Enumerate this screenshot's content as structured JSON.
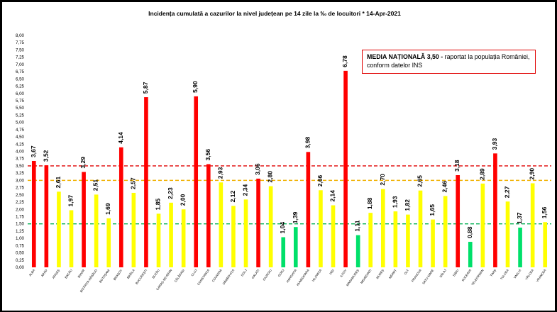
{
  "chart_data": {
    "type": "bar",
    "title": "Incidența cumulată a cazurilor la nivel județean pe 14 zile   la ‰ de locuitori  *   14-Apr-2021",
    "categories": [
      "ALBA",
      "ARAD",
      "ARGEȘ",
      "BACĂU",
      "BIHOR",
      "BISTRIȚA-NĂSĂUD",
      "BOTOȘANI",
      "BRAȘOV",
      "BRĂILA",
      "BUCUREȘTI",
      "BUZĂU",
      "CARAȘ-SEVERIN",
      "CĂLĂRAȘI",
      "CLUJ",
      "CONSTANȚA",
      "COVASNA",
      "DÂMBOVIȚA",
      "DOLJ",
      "GALAȚI",
      "GIURGIU",
      "GORJ",
      "HARGHITA",
      "HUNEDOARA",
      "IALOMIȚA",
      "IAȘI",
      "ILFOV",
      "MARAMUREȘ",
      "MEHEDINȚI",
      "MUREȘ",
      "NEAMȚ",
      "OLT",
      "PRAHOVA",
      "SATU MARE",
      "SĂLAJ",
      "SIBIU",
      "SUCEAVA",
      "TELEORMAN",
      "TIMIȘ",
      "TULCEA",
      "VASLUI",
      "VÂLCEA",
      "VRANCEA"
    ],
    "values": [
      3.67,
      3.52,
      2.61,
      1.97,
      3.29,
      2.51,
      1.69,
      4.14,
      2.57,
      5.87,
      1.85,
      2.23,
      2.0,
      5.9,
      3.56,
      2.93,
      2.12,
      2.34,
      3.06,
      2.8,
      1.04,
      1.39,
      3.98,
      2.66,
      2.14,
      6.78,
      1.11,
      1.88,
      2.7,
      1.93,
      1.82,
      2.65,
      1.65,
      2.46,
      3.18,
      0.88,
      2.89,
      3.93,
      2.27,
      1.37,
      2.9,
      1.56
    ],
    "value_labels": [
      "3,67",
      "3,52",
      "2,61",
      "1,97",
      "3,29",
      "2,51",
      "1,69",
      "4,14",
      "2,57",
      "5,87",
      "1,85",
      "2,23",
      "2,00",
      "5,90",
      "3,56",
      "2,93",
      "2,12",
      "2,34",
      "3,06",
      "2,80",
      "1,04",
      "1,39",
      "3,98",
      "2,66",
      "2,14",
      "6,78",
      "1,11",
      "1,88",
      "2,70",
      "1,93",
      "1,82",
      "2,65",
      "1,65",
      "2,46",
      "3,18",
      "0,88",
      "2,89",
      "3,93",
      "2,27",
      "1,37",
      "2,90",
      "1,56"
    ],
    "bar_colors": [
      "red",
      "red",
      "yellow",
      "yellow",
      "red",
      "yellow",
      "yellow",
      "red",
      "yellow",
      "red",
      "yellow",
      "yellow",
      "yellow",
      "red",
      "red",
      "yellow",
      "yellow",
      "yellow",
      "red",
      "yellow",
      "green",
      "green",
      "red",
      "yellow",
      "yellow",
      "red",
      "green",
      "yellow",
      "yellow",
      "yellow",
      "yellow",
      "yellow",
      "yellow",
      "yellow",
      "red",
      "green",
      "yellow",
      "red",
      "yellow",
      "green",
      "yellow",
      "yellow"
    ],
    "colors": {
      "red": "#ff0000",
      "yellow": "#ffff00",
      "green": "#00e06a"
    },
    "ylim": [
      0,
      8
    ],
    "ytick_step": 0.25,
    "yticks_labels": [
      "0,00",
      "0,25",
      "0,50",
      "0,75",
      "1,00",
      "1,25",
      "1,50",
      "1,75",
      "2,00",
      "2,25",
      "2,50",
      "2,75",
      "3,00",
      "3,25",
      "3,50",
      "3,75",
      "4,00",
      "4,25",
      "4,50",
      "4,75",
      "5,00",
      "5,25",
      "5,50",
      "5,75",
      "6,00",
      "6,25",
      "6,50",
      "6,75",
      "7,00",
      "7,25",
      "7,50",
      "7,75",
      "8,00"
    ],
    "reference_lines": [
      {
        "value": 3.5,
        "color": "#e00000",
        "style": "dashed"
      },
      {
        "value": 3.0,
        "color": "#f0b000",
        "style": "dashed"
      },
      {
        "value": 1.5,
        "color": "#00b050",
        "style": "dashed"
      }
    ],
    "annotation": {
      "bold": "MEDIA NAȚIONALĂ 3,50 -",
      "text": " raportat la populația României, conform datelor INS",
      "border_color": "#e00000"
    },
    "grid": false,
    "legend": "none"
  }
}
